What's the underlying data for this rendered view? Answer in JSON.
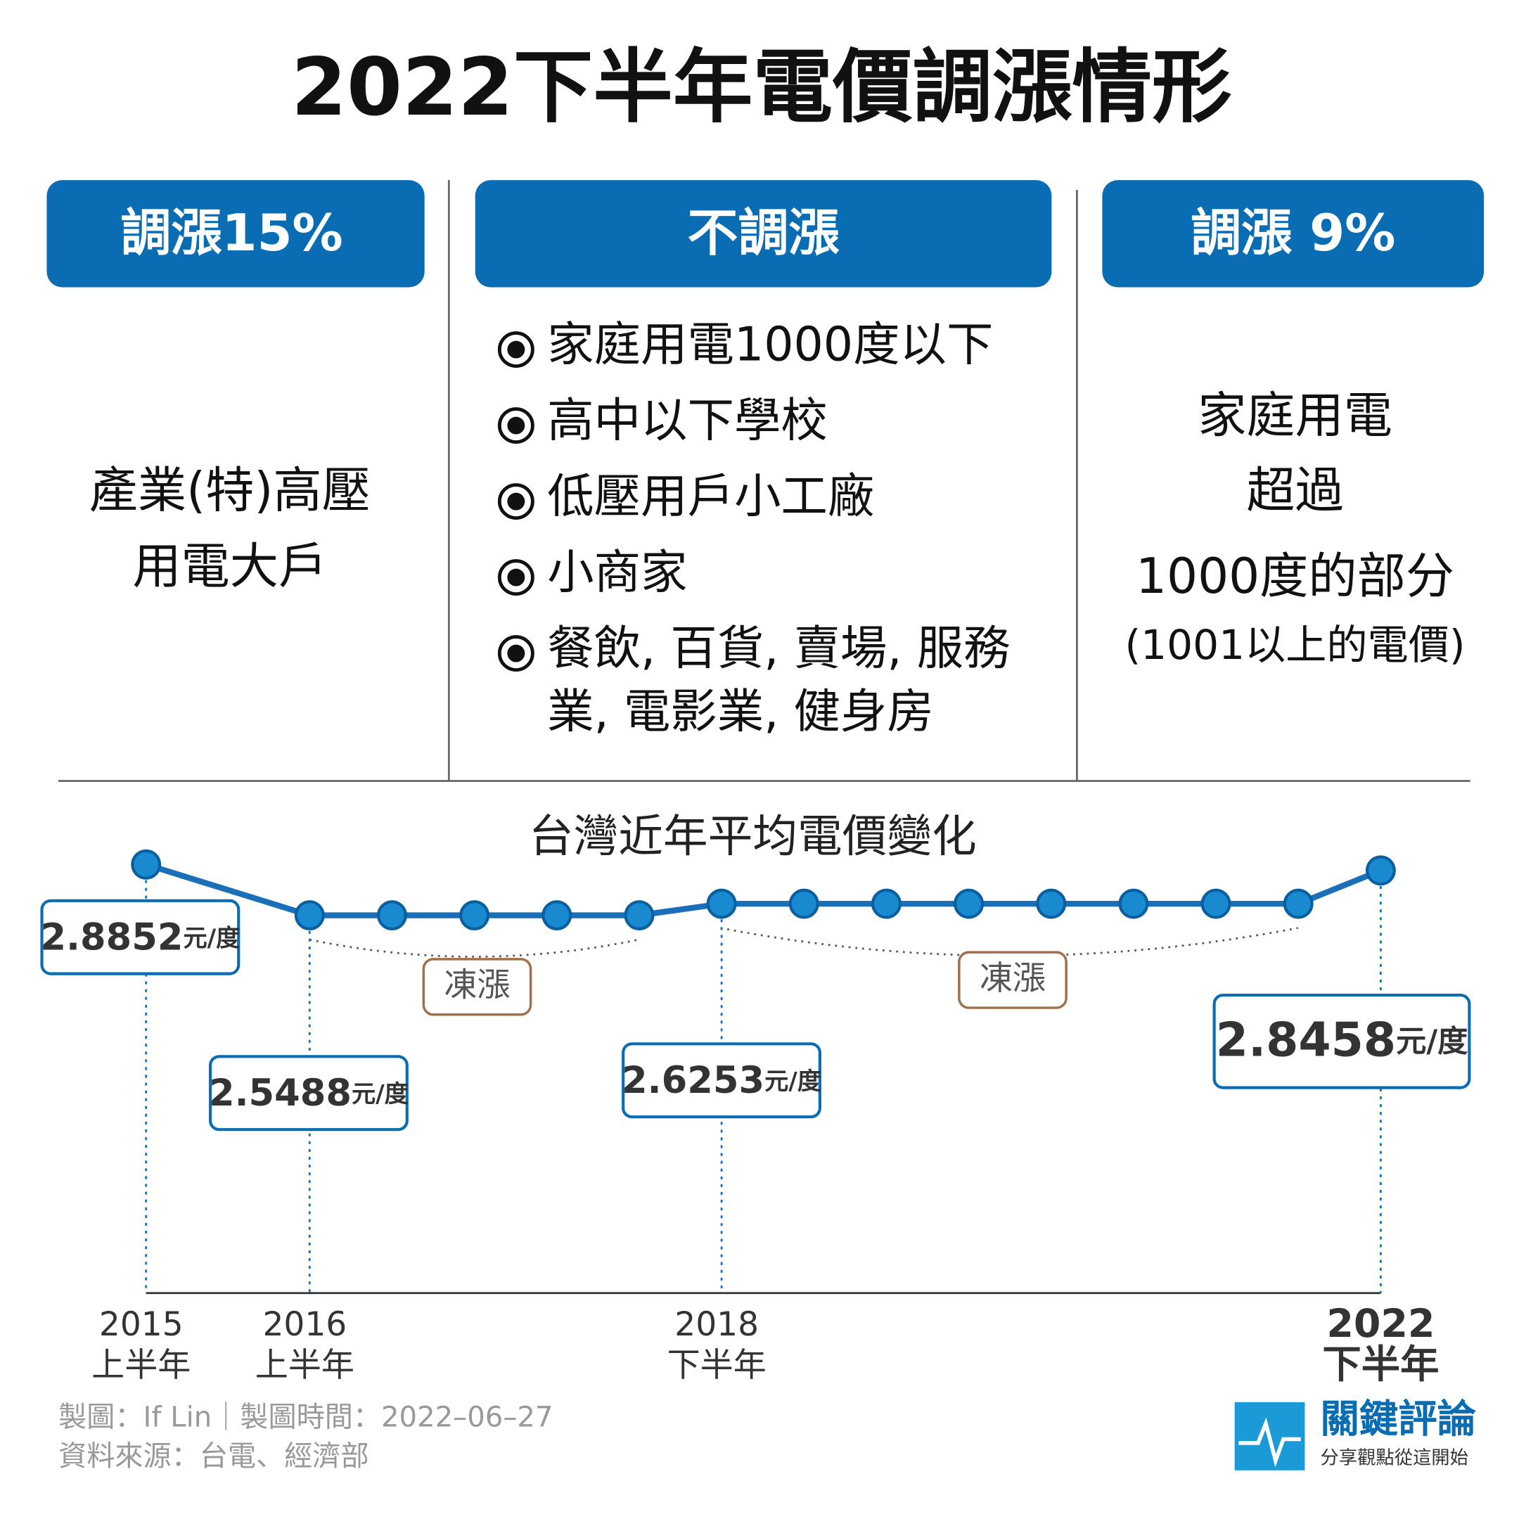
{
  "header": {
    "title": "2022下半年電價調漲情形"
  },
  "columns": [
    {
      "heading": "調漲15%",
      "lines": [
        "產業(特)高壓",
        "用電大戶"
      ]
    },
    {
      "heading": "不調漲",
      "items": [
        [
          "家庭用電1000度以下"
        ],
        [
          "高中以下學校"
        ],
        [
          "低壓用戶小工廠"
        ],
        [
          "小商家"
        ],
        [
          "餐飲, 百貨, 賣場, 服務",
          "業, 電影業, 健身房"
        ]
      ]
    },
    {
      "heading": "調漲 9%",
      "lines": [
        "家庭用電",
        "超過",
        "1000度的部分",
        "(1001以上的電價)"
      ]
    }
  ],
  "chart_data": {
    "type": "line",
    "title": "台灣近年平均電價變化",
    "color": "#1a6fb8",
    "categories": [
      "2015 上半年",
      "2016 上半年",
      null,
      null,
      null,
      null,
      "2018 下半年",
      null,
      null,
      null,
      null,
      null,
      null,
      null,
      "2022 下半年"
    ],
    "values": [
      2.8852,
      2.5488,
      2.5488,
      2.5488,
      2.5488,
      2.5488,
      2.6253,
      2.6253,
      2.6253,
      2.6253,
      2.6253,
      2.6253,
      2.6253,
      2.6253,
      2.8458
    ],
    "value_labels": [
      "2.8852元/度",
      "2.5488元/度",
      null,
      null,
      null,
      null,
      "2.6253元/度",
      null,
      null,
      null,
      null,
      null,
      null,
      null,
      "2.8458元/度"
    ],
    "annotations": [
      "凍漲",
      "凍漲"
    ]
  },
  "footer": {
    "credit": "製圖：If Lin｜製圖時間：2022–06–27",
    "source": "資料來源：台電、經濟部",
    "logo": "關鍵評論",
    "slogan": "分享觀點從這開始"
  }
}
